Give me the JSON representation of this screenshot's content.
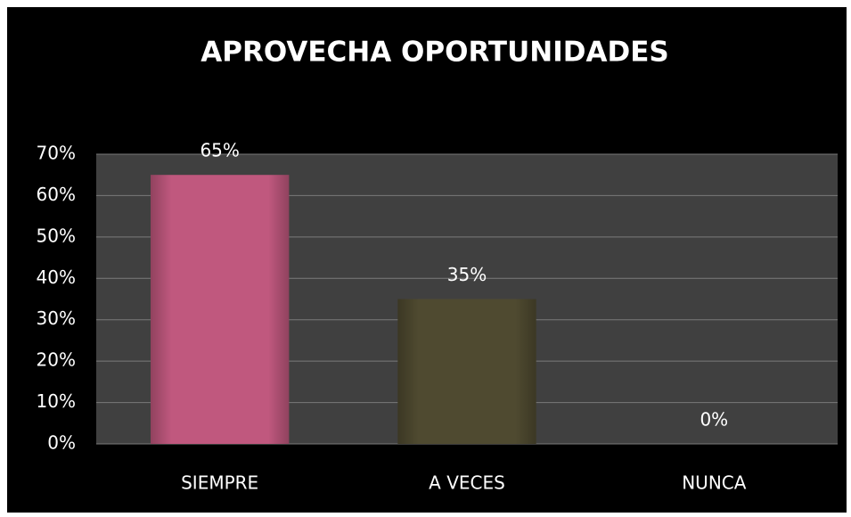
{
  "chart_data": {
    "type": "bar",
    "title": "APROVECHA OPORTUNIDADES",
    "categories": [
      "SIEMPRE",
      "A VECES",
      "NUNCA"
    ],
    "values": [
      65,
      35,
      0
    ],
    "value_labels": [
      "65%",
      "35%",
      "0%"
    ],
    "colors": [
      "#c0587e",
      "#4f4a30",
      "#7f7f7f"
    ],
    "ylim": [
      0,
      70
    ],
    "yticks": [
      {
        "value": 0,
        "label": "0%"
      },
      {
        "value": 10,
        "label": "10%"
      },
      {
        "value": 20,
        "label": "20%"
      },
      {
        "value": 30,
        "label": "30%"
      },
      {
        "value": 40,
        "label": "40%"
      },
      {
        "value": 50,
        "label": "50%"
      },
      {
        "value": 60,
        "label": "60%"
      },
      {
        "value": 70,
        "label": "70%"
      }
    ],
    "grid": true
  }
}
